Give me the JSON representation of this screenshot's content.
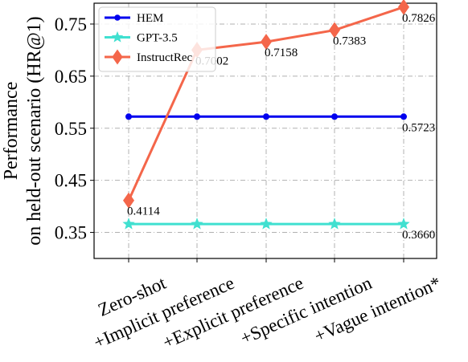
{
  "chart_data": {
    "type": "line",
    "categories": [
      "Zero-shot",
      "+Implicit preference",
      "+Explicit preference",
      "+Specific intention",
      "+Vague intention*"
    ],
    "xlabel": "",
    "ylabel_line1": "Performance",
    "ylabel_line2": "on held-out scenario (HR@1)",
    "ylim": [
      0.3,
      0.79
    ],
    "yticks": [
      0.35,
      0.45,
      0.55,
      0.65,
      0.75
    ],
    "ytick_labels": [
      "0.35",
      "0.45",
      "0.55",
      "0.65",
      "0.75"
    ],
    "grid": true,
    "legend_position": "top-left",
    "series": [
      {
        "name": "HEM",
        "color": "#0000ee",
        "marker": "circle",
        "values": [
          0.5723,
          0.5723,
          0.5723,
          0.5723,
          0.5723
        ],
        "labels": [
          "",
          "",
          "",
          "",
          "0.5723"
        ]
      },
      {
        "name": "GPT-3.5",
        "color": "#40e0d0",
        "marker": "star",
        "values": [
          0.366,
          0.366,
          0.366,
          0.366,
          0.366
        ],
        "labels": [
          "",
          "",
          "",
          "",
          "0.3660"
        ]
      },
      {
        "name": "InstructRec",
        "color": "#f4664a",
        "marker": "diamond",
        "values": [
          0.4114,
          0.7002,
          0.7158,
          0.7383,
          0.7826
        ],
        "labels": [
          "0.4114",
          "0.7002",
          "0.7158",
          "0.7383",
          "0.7826"
        ]
      }
    ]
  }
}
